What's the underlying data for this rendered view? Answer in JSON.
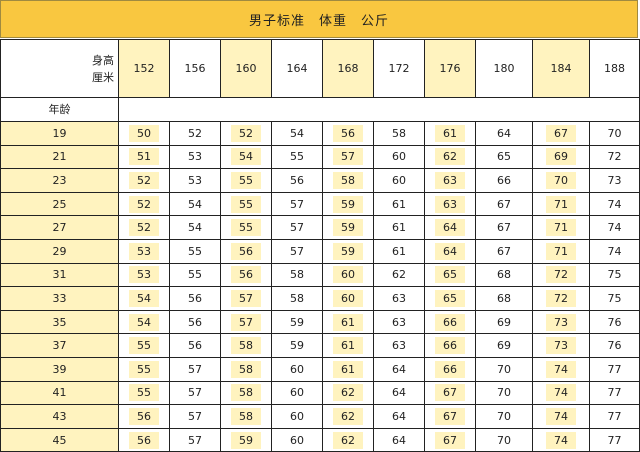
{
  "title": "男子标准　体重　公斤",
  "header": {
    "height_label": "身高",
    "unit_label": "厘米",
    "age_label": "年龄",
    "heights": [
      "152",
      "156",
      "160",
      "164",
      "168",
      "172",
      "176",
      "180",
      "184",
      "188"
    ]
  },
  "rows": [
    {
      "age": "19",
      "values": [
        "50",
        "52",
        "52",
        "54",
        "56",
        "58",
        "61",
        "64",
        "67",
        "70"
      ]
    },
    {
      "age": "21",
      "values": [
        "51",
        "53",
        "54",
        "55",
        "57",
        "60",
        "62",
        "65",
        "69",
        "72"
      ]
    },
    {
      "age": "23",
      "values": [
        "52",
        "53",
        "55",
        "56",
        "58",
        "60",
        "63",
        "66",
        "70",
        "73"
      ]
    },
    {
      "age": "25",
      "values": [
        "52",
        "54",
        "55",
        "57",
        "59",
        "61",
        "63",
        "67",
        "71",
        "74"
      ]
    },
    {
      "age": "27",
      "values": [
        "52",
        "54",
        "55",
        "57",
        "59",
        "61",
        "64",
        "67",
        "71",
        "74"
      ]
    },
    {
      "age": "29",
      "values": [
        "53",
        "55",
        "56",
        "57",
        "59",
        "61",
        "64",
        "67",
        "71",
        "74"
      ]
    },
    {
      "age": "31",
      "values": [
        "53",
        "55",
        "56",
        "58",
        "60",
        "62",
        "65",
        "68",
        "72",
        "75"
      ]
    },
    {
      "age": "33",
      "values": [
        "54",
        "56",
        "57",
        "58",
        "60",
        "63",
        "65",
        "68",
        "72",
        "75"
      ]
    },
    {
      "age": "35",
      "values": [
        "54",
        "56",
        "57",
        "59",
        "61",
        "63",
        "66",
        "69",
        "73",
        "76"
      ]
    },
    {
      "age": "37",
      "values": [
        "55",
        "56",
        "58",
        "59",
        "61",
        "63",
        "66",
        "69",
        "73",
        "76"
      ]
    },
    {
      "age": "39",
      "values": [
        "55",
        "57",
        "58",
        "60",
        "61",
        "64",
        "66",
        "70",
        "74",
        "77"
      ]
    },
    {
      "age": "41",
      "values": [
        "55",
        "57",
        "58",
        "60",
        "62",
        "64",
        "67",
        "70",
        "74",
        "77"
      ]
    },
    {
      "age": "43",
      "values": [
        "56",
        "57",
        "58",
        "60",
        "62",
        "64",
        "67",
        "70",
        "74",
        "77"
      ]
    },
    {
      "age": "45",
      "values": [
        "56",
        "57",
        "59",
        "60",
        "62",
        "64",
        "67",
        "70",
        "74",
        "77"
      ]
    }
  ],
  "colors": {
    "title_bg": "#f9c740",
    "light_yellow": "#fff3bf"
  }
}
